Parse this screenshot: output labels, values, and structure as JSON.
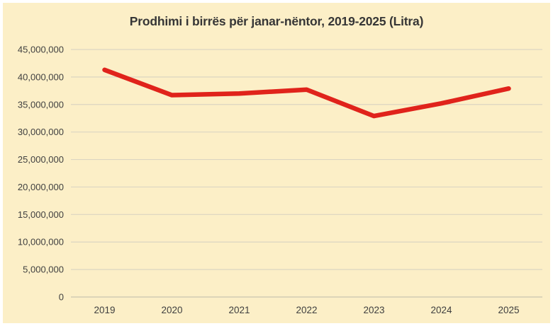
{
  "page": {
    "background": "#ffffff",
    "panel_background": "#FCEFC7"
  },
  "chart_data": {
    "type": "line",
    "title": "Prodhimi i birrës për janar-nëntor, 2019-2025 (Litra)",
    "categories": [
      "2019",
      "2020",
      "2021",
      "2022",
      "2023",
      "2024",
      "2025"
    ],
    "series": [
      {
        "name": "Prodhimi i birrës (Litra)",
        "color": "#E0231B",
        "values": [
          41300000,
          36700000,
          37000000,
          37700000,
          32900000,
          35200000,
          37900000
        ]
      }
    ],
    "xlabel": "",
    "ylabel": "",
    "ylim": [
      0,
      45000000
    ],
    "yticks": [
      0,
      5000000,
      10000000,
      15000000,
      20000000,
      25000000,
      30000000,
      35000000,
      40000000,
      45000000
    ],
    "ytick_labels": [
      "0",
      "5,000,000",
      "10,000,000",
      "15,000,000",
      "20,000,000",
      "25,000,000",
      "30,000,000",
      "35,000,000",
      "40,000,000",
      "45,000,000"
    ],
    "grid": true,
    "legend_position": "none",
    "colors": {
      "background": "#FCEFC7",
      "gridline": "#DBD5C2",
      "axis_line": "#C9C3AF",
      "tick_text": "#3F3F3F",
      "title_text": "#363636",
      "line": "#E0231B"
    }
  }
}
